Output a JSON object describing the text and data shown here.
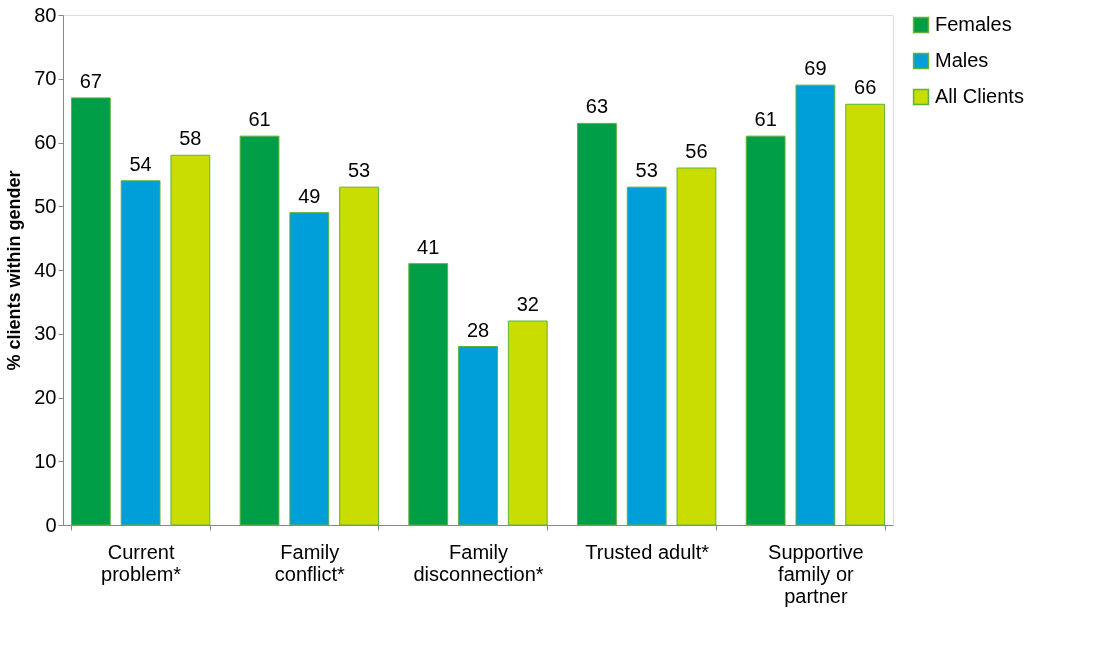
{
  "chart_data": {
    "type": "bar",
    "ylabel": "% clients within gender",
    "categories": [
      "Current problem*",
      "Family conflict*",
      "Family disconnection*",
      "Trusted adult*",
      "Supportive family or partner"
    ],
    "series": [
      {
        "name": "Females",
        "color": "#009e47",
        "values": [
          67,
          61,
          41,
          63,
          61
        ]
      },
      {
        "name": "Males",
        "color": "#009fda",
        "values": [
          54,
          49,
          28,
          53,
          69
        ]
      },
      {
        "name": "All Clients",
        "color": "#c9dd03",
        "values": [
          58,
          53,
          32,
          56,
          66
        ]
      }
    ],
    "ylim": [
      0,
      80
    ],
    "yticks": [
      0,
      10,
      20,
      30,
      40,
      50,
      60,
      70,
      80
    ],
    "grid": false,
    "legend": "right",
    "data_labels": true
  }
}
